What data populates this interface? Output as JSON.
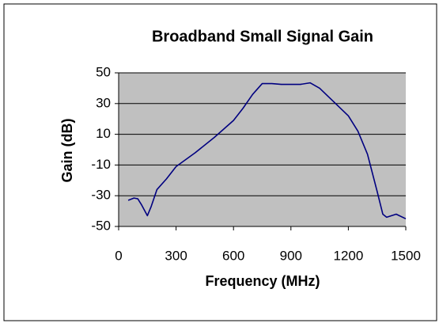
{
  "chart_data": {
    "type": "line",
    "title": "Broadband Small Signal Gain",
    "x_label": "Frequency (MHz)",
    "y_label": "Gain (dB)",
    "xlim": [
      0,
      1500
    ],
    "xticks": [
      0,
      300,
      600,
      900,
      1200,
      1500
    ],
    "ylim": [
      -50,
      50
    ],
    "yticks": [
      -50,
      -30,
      -10,
      10,
      30,
      50
    ],
    "grid": true,
    "plot_background": "#c0c0c0",
    "series": [
      {
        "name": "Gain",
        "color": "#000080",
        "x": [
          50,
          80,
          100,
          120,
          150,
          170,
          200,
          250,
          300,
          400,
          500,
          600,
          650,
          700,
          750,
          800,
          850,
          900,
          950,
          1000,
          1050,
          1100,
          1150,
          1200,
          1250,
          1300,
          1350,
          1380,
          1400,
          1450,
          1500
        ],
        "values": [
          -33,
          -31.5,
          -32,
          -36,
          -43,
          -37,
          -26,
          -19,
          -11,
          -2,
          8,
          19,
          27,
          36,
          43,
          43,
          42.5,
          42.5,
          42.5,
          43.5,
          40,
          34,
          28,
          22,
          12,
          -3,
          -27,
          -42,
          -44,
          -42,
          -45
        ]
      }
    ]
  }
}
